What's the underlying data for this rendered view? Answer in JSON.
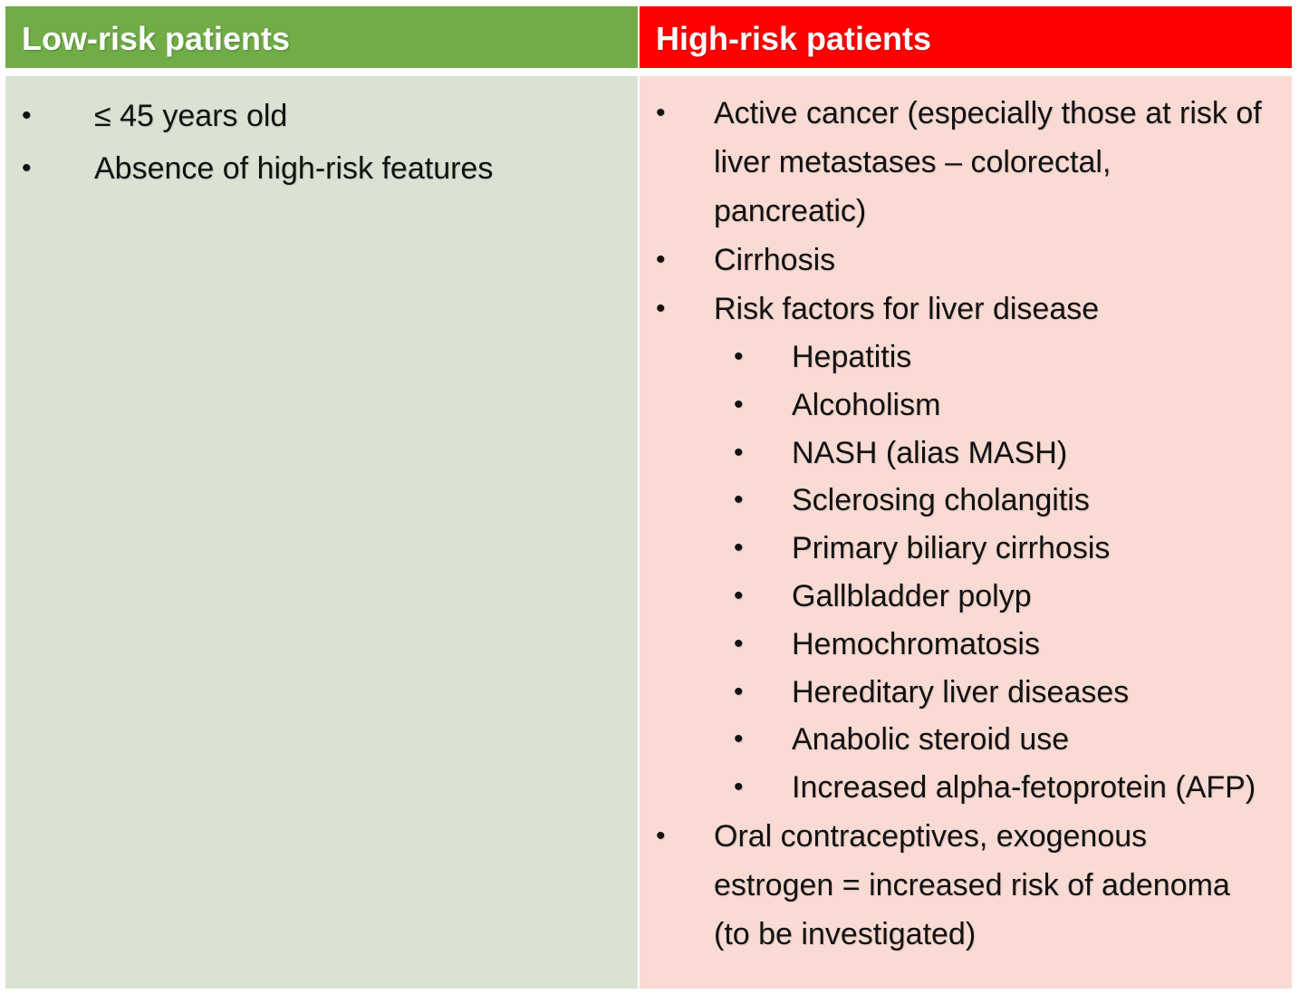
{
  "low_risk": {
    "header": "Low-risk patients",
    "items": [
      "≤ 45 years old",
      "Absence of high-risk features"
    ]
  },
  "high_risk": {
    "header": "High-risk patients",
    "items": [
      "Active cancer (especially those at risk of liver metastases – colorectal, pancreatic)",
      "Cirrhosis",
      "Risk factors for liver disease",
      "Oral contraceptives, exogenous estrogen = increased risk of adenoma (to be investigated)"
    ],
    "sub_items": [
      "Hepatitis",
      "Alcoholism",
      "NASH (alias MASH)",
      "Sclerosing cholangitis",
      "Primary biliary cirrhosis",
      "Gallbladder polyp",
      "Hemochromatosis",
      "Hereditary liver diseases",
      "Anabolic steroid use",
      "Increased alpha-fetoprotein (AFP)"
    ]
  },
  "bullet_char": "•",
  "colors": {
    "low_header": "#70ad47",
    "low_body": "#d9e2d3",
    "high_header": "#ff0000",
    "high_body": "#fadbd3"
  }
}
